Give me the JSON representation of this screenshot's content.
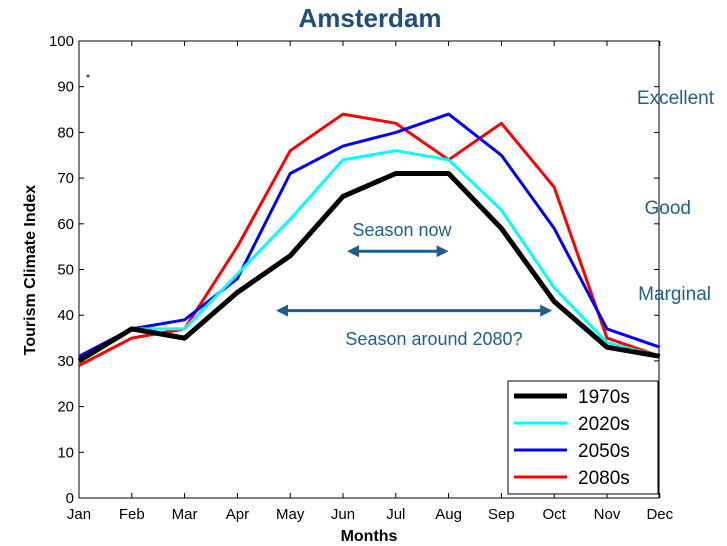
{
  "chart_data": {
    "type": "line",
    "title": "Amsterdam",
    "xlabel": "Months",
    "ylabel": "Tourism Climate Index",
    "categories": [
      "Jan",
      "Feb",
      "Mar",
      "Apr",
      "May",
      "Jun",
      "Jul",
      "Aug",
      "Sep",
      "Oct",
      "Nov",
      "Dec"
    ],
    "ylim": [
      0,
      100
    ],
    "yticks": [
      0,
      10,
      20,
      30,
      40,
      50,
      60,
      70,
      80,
      90,
      100
    ],
    "grid": false,
    "legend_position": "bottom-right",
    "series": [
      {
        "name": "1970s",
        "color": "#000000",
        "values": [
          30,
          37,
          35,
          45,
          53,
          66,
          71,
          71,
          59,
          43,
          33,
          31
        ]
      },
      {
        "name": "2020s",
        "color": "#00ffff",
        "values": [
          30,
          37,
          37,
          49,
          61,
          74,
          76,
          74,
          63,
          46,
          34,
          31
        ]
      },
      {
        "name": "2050s",
        "color": "#0000ff",
        "values": [
          31,
          37,
          39,
          48,
          71,
          77,
          80,
          84,
          75,
          59,
          37,
          33
        ]
      },
      {
        "name": "2080s",
        "color": "#ff0000",
        "values": [
          29,
          35,
          37,
          55,
          76,
          84,
          82,
          74,
          82,
          68,
          35,
          31
        ]
      }
    ],
    "zone_labels": [
      "Excellent",
      "Good",
      "Marginal"
    ],
    "annotations": {
      "season_now": {
        "label": "Season now",
        "from": "Jun",
        "to": "Aug",
        "y": 54
      },
      "season_2080": {
        "label": "Season around 2080?",
        "from": "Apr.75",
        "to": "Oct",
        "y": 41
      }
    },
    "arrow_color": "#1f5f8b"
  }
}
